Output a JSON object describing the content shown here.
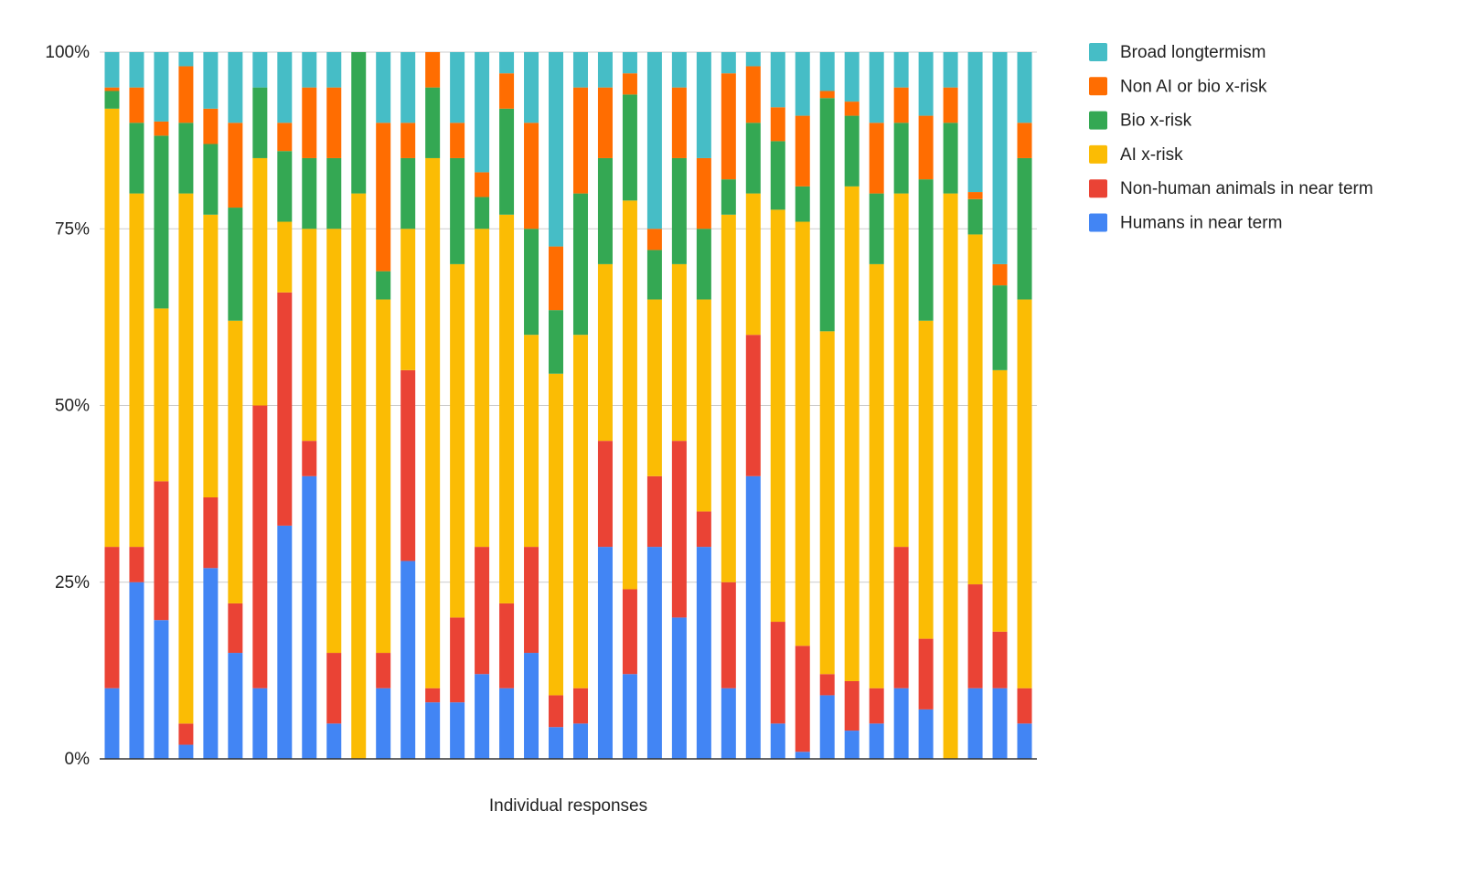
{
  "chart_data": {
    "type": "bar",
    "stacked": true,
    "normalized": true,
    "title": "",
    "xlabel": "Individual responses",
    "ylabel": "",
    "ylim": [
      0,
      100
    ],
    "yticks": [
      0,
      25,
      50,
      75,
      100
    ],
    "ytick_labels": [
      "0%",
      "25%",
      "50%",
      "75%",
      "100%"
    ],
    "grid": true,
    "legend_position": "right",
    "legend_order": [
      "Broad longtermism",
      "Non AI or bio x-risk",
      "Bio x-risk",
      "AI x-risk",
      "Non-human animals in near term",
      "Humans in near term"
    ],
    "series": [
      {
        "name": "Humans in near term",
        "color": "#4285F4",
        "values": [
          10,
          25,
          19.6,
          2,
          27,
          15,
          10,
          33,
          40,
          5,
          0,
          10,
          28,
          8,
          8,
          12,
          10,
          15,
          4.5,
          5,
          30,
          12,
          30,
          20,
          30,
          10,
          40,
          5,
          1,
          9,
          4,
          5,
          10,
          7,
          0,
          10,
          10,
          5
        ]
      },
      {
        "name": "Non-human animals in near term",
        "color": "#EA4335",
        "values": [
          20,
          5,
          19.6,
          3,
          10,
          7,
          40,
          33,
          5,
          10,
          0,
          5,
          27,
          2,
          12,
          18,
          12,
          15,
          4.5,
          5,
          15,
          12,
          10,
          25,
          5,
          15,
          20,
          14.4,
          15,
          3,
          7,
          5,
          20,
          10,
          0,
          14.7,
          8,
          5
        ]
      },
      {
        "name": "AI x-risk",
        "color": "#FBBC04",
        "values": [
          62,
          50,
          24.4,
          75,
          40,
          40,
          35,
          10,
          30,
          60,
          80,
          50,
          20,
          75,
          50,
          45,
          55,
          30,
          45.5,
          50,
          25,
          55,
          25,
          25,
          30,
          52,
          20,
          58.3,
          60,
          48.5,
          70,
          60,
          50,
          45,
          80,
          49.5,
          37,
          55
        ]
      },
      {
        "name": "Bio x-risk",
        "color": "#34A853",
        "values": [
          2.5,
          10,
          24.4,
          10,
          10,
          16,
          10,
          10,
          10,
          10,
          20,
          4,
          10,
          10,
          15,
          4.5,
          15,
          15,
          9,
          20,
          15,
          15,
          7,
          15,
          10,
          5,
          10,
          9.7,
          5,
          33,
          10,
          10,
          10,
          20,
          10,
          5,
          12,
          20
        ]
      },
      {
        "name": "Non AI or bio x-risk",
        "color": "#FF6D01",
        "values": [
          0.5,
          5,
          2,
          8,
          5,
          12,
          0,
          4,
          10,
          10,
          0,
          21,
          5,
          5,
          5,
          3.5,
          5,
          15,
          9,
          15,
          10,
          3,
          3,
          10,
          10,
          15,
          8,
          4.8,
          10,
          1,
          2,
          10,
          5,
          9,
          5,
          1,
          3,
          5
        ]
      },
      {
        "name": "Broad longtermism",
        "color": "#46BDC6",
        "values": [
          5,
          5,
          9.8,
          2,
          8,
          10,
          5,
          10,
          5,
          5,
          0,
          10,
          10,
          0,
          10,
          17,
          3,
          10,
          27.5,
          5,
          5,
          3,
          25,
          5,
          15,
          3,
          2,
          7.8,
          9,
          5.5,
          7,
          10,
          5,
          9,
          5,
          19.8,
          30,
          10
        ]
      }
    ]
  }
}
